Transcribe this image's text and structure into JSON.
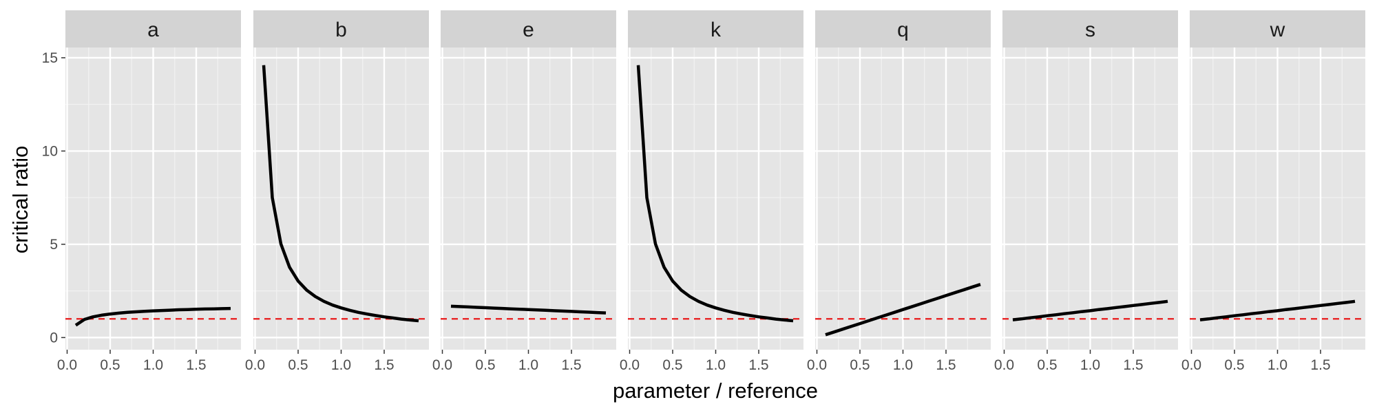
{
  "chart_data": {
    "type": "line",
    "layout": "facet-wrap",
    "xlabel": "parameter / reference",
    "ylabel": "critical ratio",
    "xlim": [
      -0.02,
      2.02
    ],
    "ylim": [
      -0.65,
      15.55
    ],
    "x_ticks": [
      0.0,
      0.5,
      1.0,
      1.5
    ],
    "x_tick_labels": [
      "0.0",
      "0.5",
      "1.0",
      "1.5"
    ],
    "y_ticks": [
      0,
      5,
      10,
      15
    ],
    "y_tick_labels": [
      "0",
      "5",
      "10",
      "15"
    ],
    "grid": true,
    "reference_line": {
      "y": 1,
      "color": "#e8191a",
      "style": "dashed"
    },
    "line_color": "#000000",
    "panel_background": "#e5e5e5",
    "strip_background": "#d3d3d3",
    "x": [
      0.1,
      0.2,
      0.3,
      0.4,
      0.5,
      0.6,
      0.7,
      0.8,
      0.9,
      1.0,
      1.1,
      1.2,
      1.3,
      1.4,
      1.5,
      1.6,
      1.7,
      1.8,
      1.9
    ],
    "panels": [
      {
        "label": "a",
        "values": [
          0.66,
          0.97,
          1.11,
          1.2,
          1.26,
          1.31,
          1.35,
          1.38,
          1.41,
          1.43,
          1.45,
          1.47,
          1.49,
          1.5,
          1.52,
          1.53,
          1.54,
          1.55,
          1.56
        ]
      },
      {
        "label": "b",
        "values": [
          14.6,
          7.5,
          5.02,
          3.77,
          3.03,
          2.54,
          2.2,
          1.94,
          1.74,
          1.59,
          1.46,
          1.35,
          1.26,
          1.18,
          1.11,
          1.05,
          0.99,
          0.94,
          0.9
        ]
      },
      {
        "label": "e",
        "values": [
          1.68,
          1.66,
          1.64,
          1.62,
          1.6,
          1.58,
          1.56,
          1.54,
          1.52,
          1.5,
          1.48,
          1.46,
          1.44,
          1.42,
          1.4,
          1.38,
          1.36,
          1.34,
          1.32
        ]
      },
      {
        "label": "k",
        "values": [
          14.6,
          7.5,
          5.02,
          3.77,
          3.03,
          2.54,
          2.2,
          1.94,
          1.74,
          1.59,
          1.46,
          1.35,
          1.26,
          1.18,
          1.11,
          1.05,
          0.99,
          0.94,
          0.9
        ]
      },
      {
        "label": "q",
        "values": [
          0.15,
          0.3,
          0.45,
          0.6,
          0.75,
          0.9,
          1.05,
          1.2,
          1.35,
          1.5,
          1.65,
          1.8,
          1.95,
          2.1,
          2.25,
          2.4,
          2.55,
          2.7,
          2.85
        ]
      },
      {
        "label": "s",
        "values": [
          0.95,
          1.0,
          1.06,
          1.11,
          1.17,
          1.22,
          1.28,
          1.33,
          1.39,
          1.44,
          1.5,
          1.55,
          1.61,
          1.66,
          1.72,
          1.77,
          1.83,
          1.88,
          1.94
        ]
      },
      {
        "label": "w",
        "values": [
          0.95,
          1.0,
          1.06,
          1.11,
          1.17,
          1.22,
          1.28,
          1.33,
          1.39,
          1.44,
          1.5,
          1.55,
          1.61,
          1.66,
          1.72,
          1.77,
          1.83,
          1.88,
          1.94
        ]
      }
    ]
  }
}
